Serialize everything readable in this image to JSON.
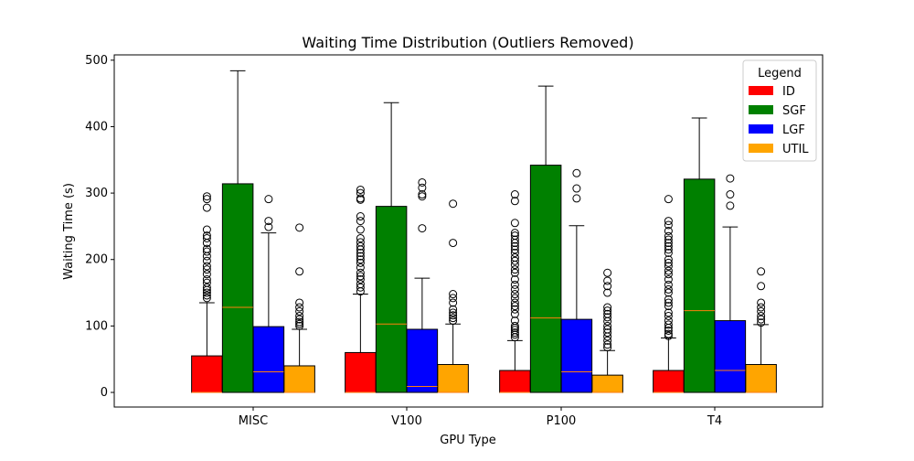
{
  "chart_data": {
    "type": "box",
    "title": "Waiting Time Distribution (Outliers Removed)",
    "xlabel": "GPU Type",
    "ylabel": "Waiting Time (s)",
    "ylim": [
      -22,
      508
    ],
    "yticks": [
      0,
      100,
      200,
      300,
      400,
      500
    ],
    "categories": [
      "MISC",
      "V100",
      "P100",
      "T4"
    ],
    "legend": {
      "title": "Legend",
      "placement": "top-right"
    },
    "grid": false,
    "series": [
      {
        "name": "ID",
        "color": "#ff0000",
        "boxes": [
          {
            "q1": 0,
            "median": 0,
            "q3": 55,
            "whisker_low": 0,
            "whisker_high": 135,
            "fliers": [
              142,
              146,
              150,
              154,
              158,
              165,
              170,
              178,
              185,
              190,
              198,
              205,
              212,
              216,
              225,
              232,
              236,
              245,
              278,
              291,
              295
            ]
          },
          {
            "q1": 0,
            "median": 0,
            "q3": 60,
            "whisker_low": 0,
            "whisker_high": 148,
            "fliers": [
              152,
              158,
              163,
              170,
              175,
              180,
              188,
              195,
              200,
              205,
              210,
              215,
              220,
              226,
              232,
              245,
              258,
              265,
              290,
              292,
              300,
              305
            ]
          },
          {
            "q1": 0,
            "median": 0,
            "q3": 33,
            "whisker_low": 0,
            "whisker_high": 78,
            "fliers": [
              83,
              87,
              90,
              94,
              97,
              100,
              108,
              118,
              125,
              130,
              135,
              142,
              148,
              155,
              162,
              170,
              180,
              185,
              192,
              198,
              203,
              210,
              215,
              220,
              225,
              230,
              236,
              240,
              255,
              288,
              298
            ]
          },
          {
            "q1": 0,
            "median": 0,
            "q3": 33,
            "whisker_low": 0,
            "whisker_high": 82,
            "fliers": [
              85,
              88,
              93,
              97,
              102,
              108,
              115,
              120,
              130,
              135,
              140,
              150,
              155,
              162,
              170,
              178,
              183,
              190,
              195,
              200,
              210,
              215,
              220,
              225,
              230,
              235,
              243,
              252,
              258,
              291
            ]
          }
        ]
      },
      {
        "name": "SGF",
        "color": "#008000",
        "boxes": [
          {
            "q1": 0,
            "median": 128,
            "q3": 314,
            "whisker_low": 0,
            "whisker_high": 484,
            "fliers": []
          },
          {
            "q1": 0,
            "median": 103,
            "q3": 280,
            "whisker_low": 0,
            "whisker_high": 436,
            "fliers": []
          },
          {
            "q1": 0,
            "median": 112,
            "q3": 342,
            "whisker_low": 0,
            "whisker_high": 461,
            "fliers": []
          },
          {
            "q1": 0,
            "median": 123,
            "q3": 321,
            "whisker_low": 0,
            "whisker_high": 413,
            "fliers": []
          }
        ]
      },
      {
        "name": "LGF",
        "color": "#0000ff",
        "boxes": [
          {
            "q1": 0,
            "median": 31,
            "q3": 99,
            "whisker_low": 0,
            "whisker_high": 240,
            "fliers": [
              249,
              258,
              291
            ]
          },
          {
            "q1": 0,
            "median": 9,
            "q3": 95,
            "whisker_low": 0,
            "whisker_high": 172,
            "fliers": [
              247,
              295,
              298,
              308,
              316
            ]
          },
          {
            "q1": 0,
            "median": 31,
            "q3": 110,
            "whisker_low": 0,
            "whisker_high": 251,
            "fliers": [
              292,
              307,
              330
            ]
          },
          {
            "q1": 0,
            "median": 33,
            "q3": 108,
            "whisker_low": 0,
            "whisker_high": 249,
            "fliers": [
              281,
              298,
              322
            ]
          }
        ]
      },
      {
        "name": "UTIL",
        "color": "#ffa500",
        "boxes": [
          {
            "q1": 0,
            "median": 0,
            "q3": 40,
            "whisker_low": 0,
            "whisker_high": 95,
            "fliers": [
              100,
              103,
              106,
              110,
              115,
              122,
              128,
              135,
              182,
              248
            ]
          },
          {
            "q1": 0,
            "median": 0,
            "q3": 42,
            "whisker_low": 0,
            "whisker_high": 103,
            "fliers": [
              108,
              112,
              116,
              120,
              125,
              135,
              142,
              148,
              225,
              284
            ]
          },
          {
            "q1": 0,
            "median": 0,
            "q3": 26,
            "whisker_low": 0,
            "whisker_high": 63,
            "fliers": [
              68,
              72,
              78,
              84,
              90,
              95,
              100,
              107,
              113,
              118,
              123,
              128,
              150,
              160,
              168,
              180
            ]
          },
          {
            "q1": 0,
            "median": 0,
            "q3": 42,
            "whisker_low": 0,
            "whisker_high": 102,
            "fliers": [
              105,
              110,
              115,
              122,
              128,
              135,
              160,
              182
            ]
          }
        ]
      }
    ]
  }
}
